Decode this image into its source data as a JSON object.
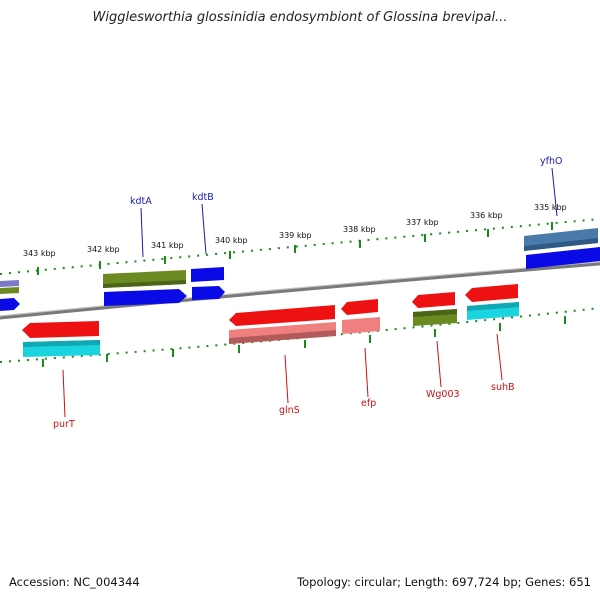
{
  "title": "Wigglesworthia glossinidia endosymbiont of Glossina brevipal...",
  "footer": {
    "accession": "Accession: NC_004344",
    "summary": "Topology: circular; Length: 697,724 bp; Genes: 651"
  },
  "scale_labels": [
    "343 kbp",
    "342 kbp",
    "341 kbp",
    "340 kbp",
    "339 kbp",
    "338 kbp",
    "337 kbp",
    "336 kbp",
    "335 kbp"
  ],
  "genes": {
    "outer": [
      "kdtA",
      "kdtB",
      "yfhO"
    ],
    "inner": [
      "purT",
      "glnS",
      "efp",
      "Wg003",
      "suhB"
    ]
  },
  "colors": {
    "backbone": "#808080",
    "tick": "#1a8a1a",
    "outer_label": "#1a1aa8",
    "inner_label": "#cc1111",
    "blue": "#0a0ae6",
    "olive": "#6b8a22",
    "steel": "#4a7aaa",
    "red": "#ee1111",
    "pink": "#f08080",
    "cyan": "#1ad4e0"
  }
}
